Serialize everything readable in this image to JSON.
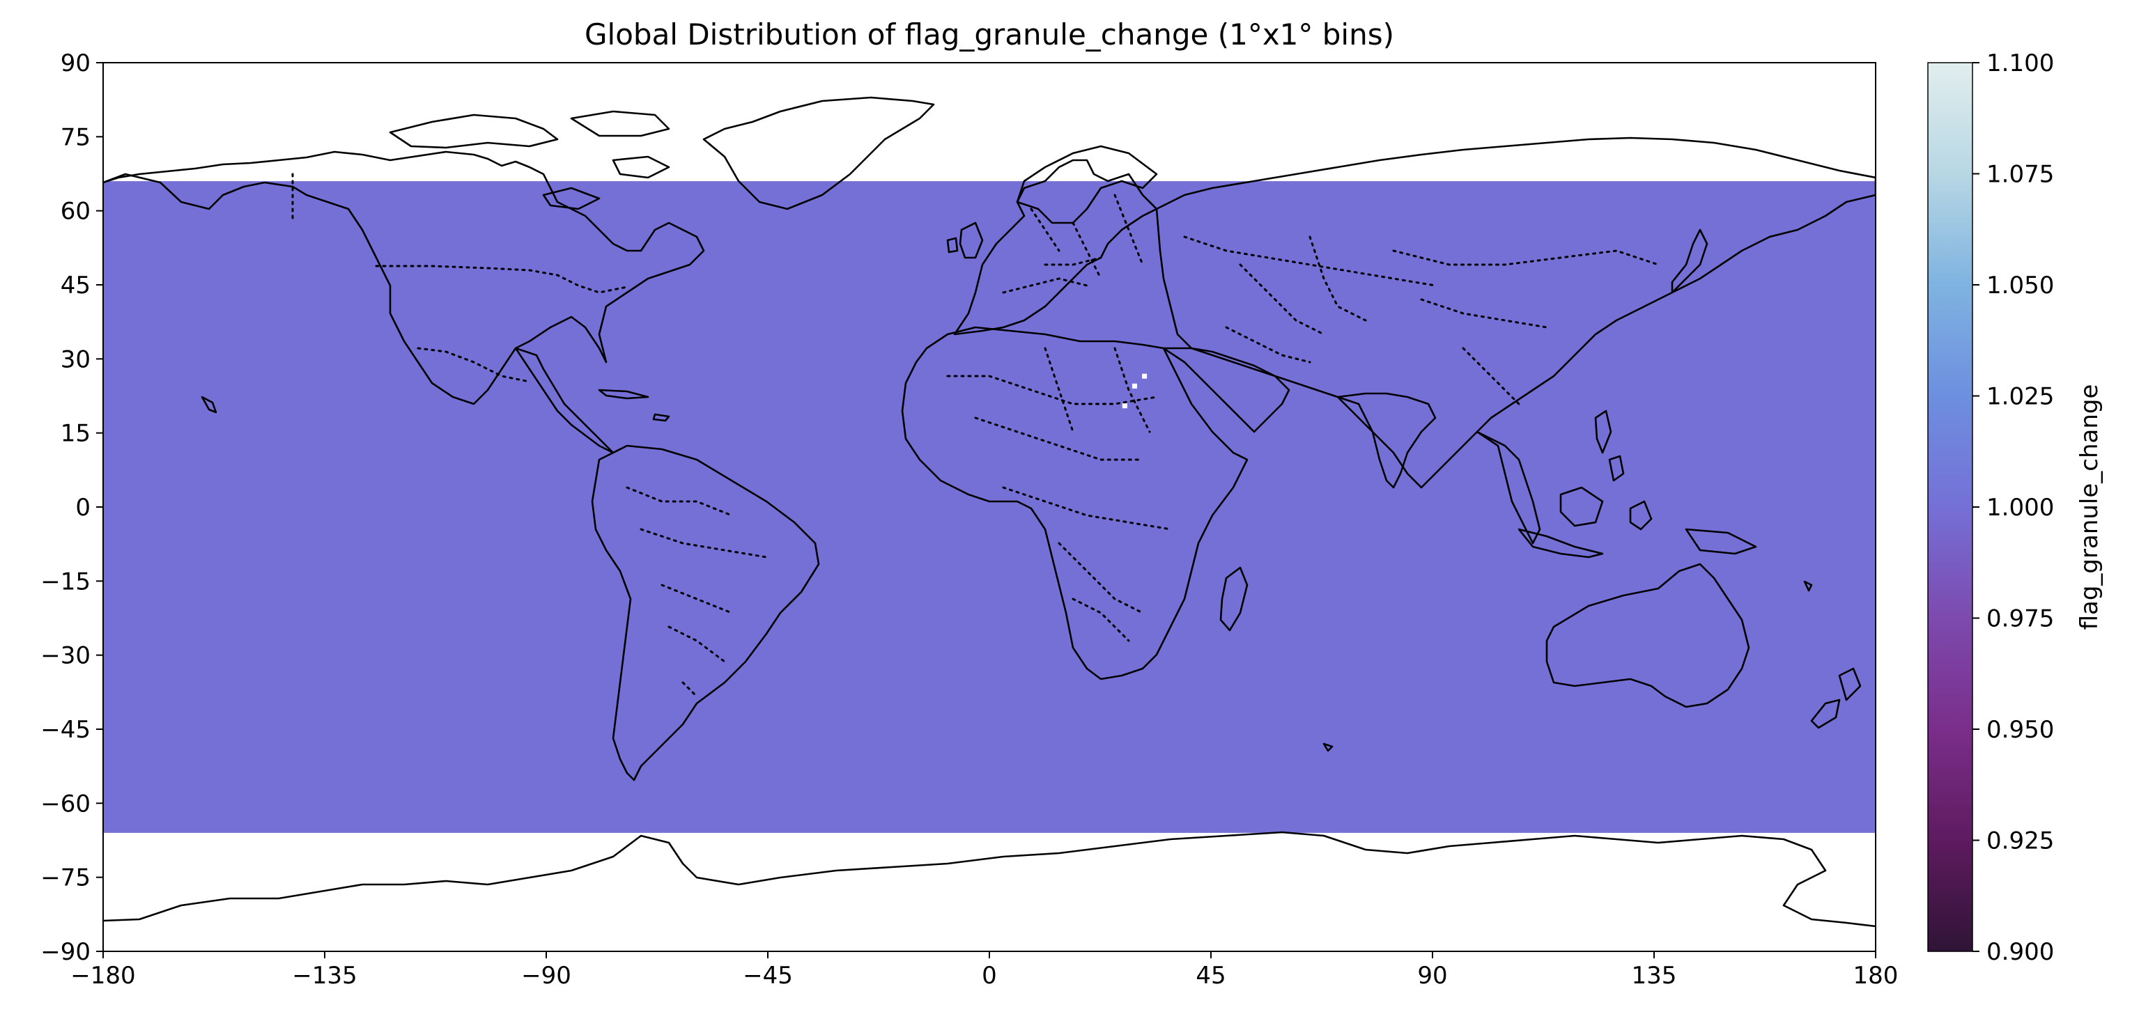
{
  "chart_data": {
    "type": "heatmap",
    "title": "Global Distribution of flag_granule_change (1°x1° bins)",
    "xlim": [
      -180,
      180
    ],
    "ylim": [
      -90,
      90
    ],
    "x_ticks": [
      -180,
      -135,
      -90,
      -45,
      0,
      45,
      90,
      135,
      180
    ],
    "y_ticks": [
      -90,
      -75,
      -60,
      -45,
      -30,
      -15,
      0,
      15,
      30,
      45,
      60,
      75,
      90
    ],
    "x_tick_labels": [
      "−180",
      "−135",
      "−90",
      "−45",
      "0",
      "45",
      "90",
      "135",
      "180"
    ],
    "y_tick_labels": [
      "−90",
      "−75",
      "−60",
      "−45",
      "−30",
      "−15",
      "0",
      "15",
      "30",
      "45",
      "60",
      "75",
      "90"
    ],
    "data_band": {
      "lon_min": -180,
      "lon_max": 180,
      "lat_min": -66,
      "lat_max": 66,
      "value": 1.0,
      "color": "#7570d6"
    },
    "missing_cells": [
      {
        "lon": 31,
        "lat": 26
      },
      {
        "lon": 29,
        "lat": 24
      },
      {
        "lon": 27,
        "lat": 20
      }
    ],
    "colorbar": {
      "label": "flag_granule_change",
      "min": 0.9,
      "max": 1.1,
      "ticks": [
        0.9,
        0.925,
        0.95,
        0.975,
        1.0,
        1.025,
        1.05,
        1.075,
        1.1
      ],
      "tick_labels": [
        "0.900",
        "0.925",
        "0.950",
        "0.975",
        "1.000",
        "1.025",
        "1.050",
        "1.075",
        "1.100"
      ],
      "colormap": "twilight",
      "stops": [
        {
          "value": 0.9,
          "color": "#2f1436"
        },
        {
          "value": 0.925,
          "color": "#5e1b5f"
        },
        {
          "value": 0.95,
          "color": "#7a2e8a"
        },
        {
          "value": 0.975,
          "color": "#7d4aae"
        },
        {
          "value": 1.0,
          "color": "#7570d6"
        },
        {
          "value": 1.025,
          "color": "#6d8fdf"
        },
        {
          "value": 1.05,
          "color": "#7fb3e0"
        },
        {
          "value": 1.075,
          "color": "#b7d7e4"
        },
        {
          "value": 1.1,
          "color": "#e2eeee"
        }
      ]
    }
  }
}
